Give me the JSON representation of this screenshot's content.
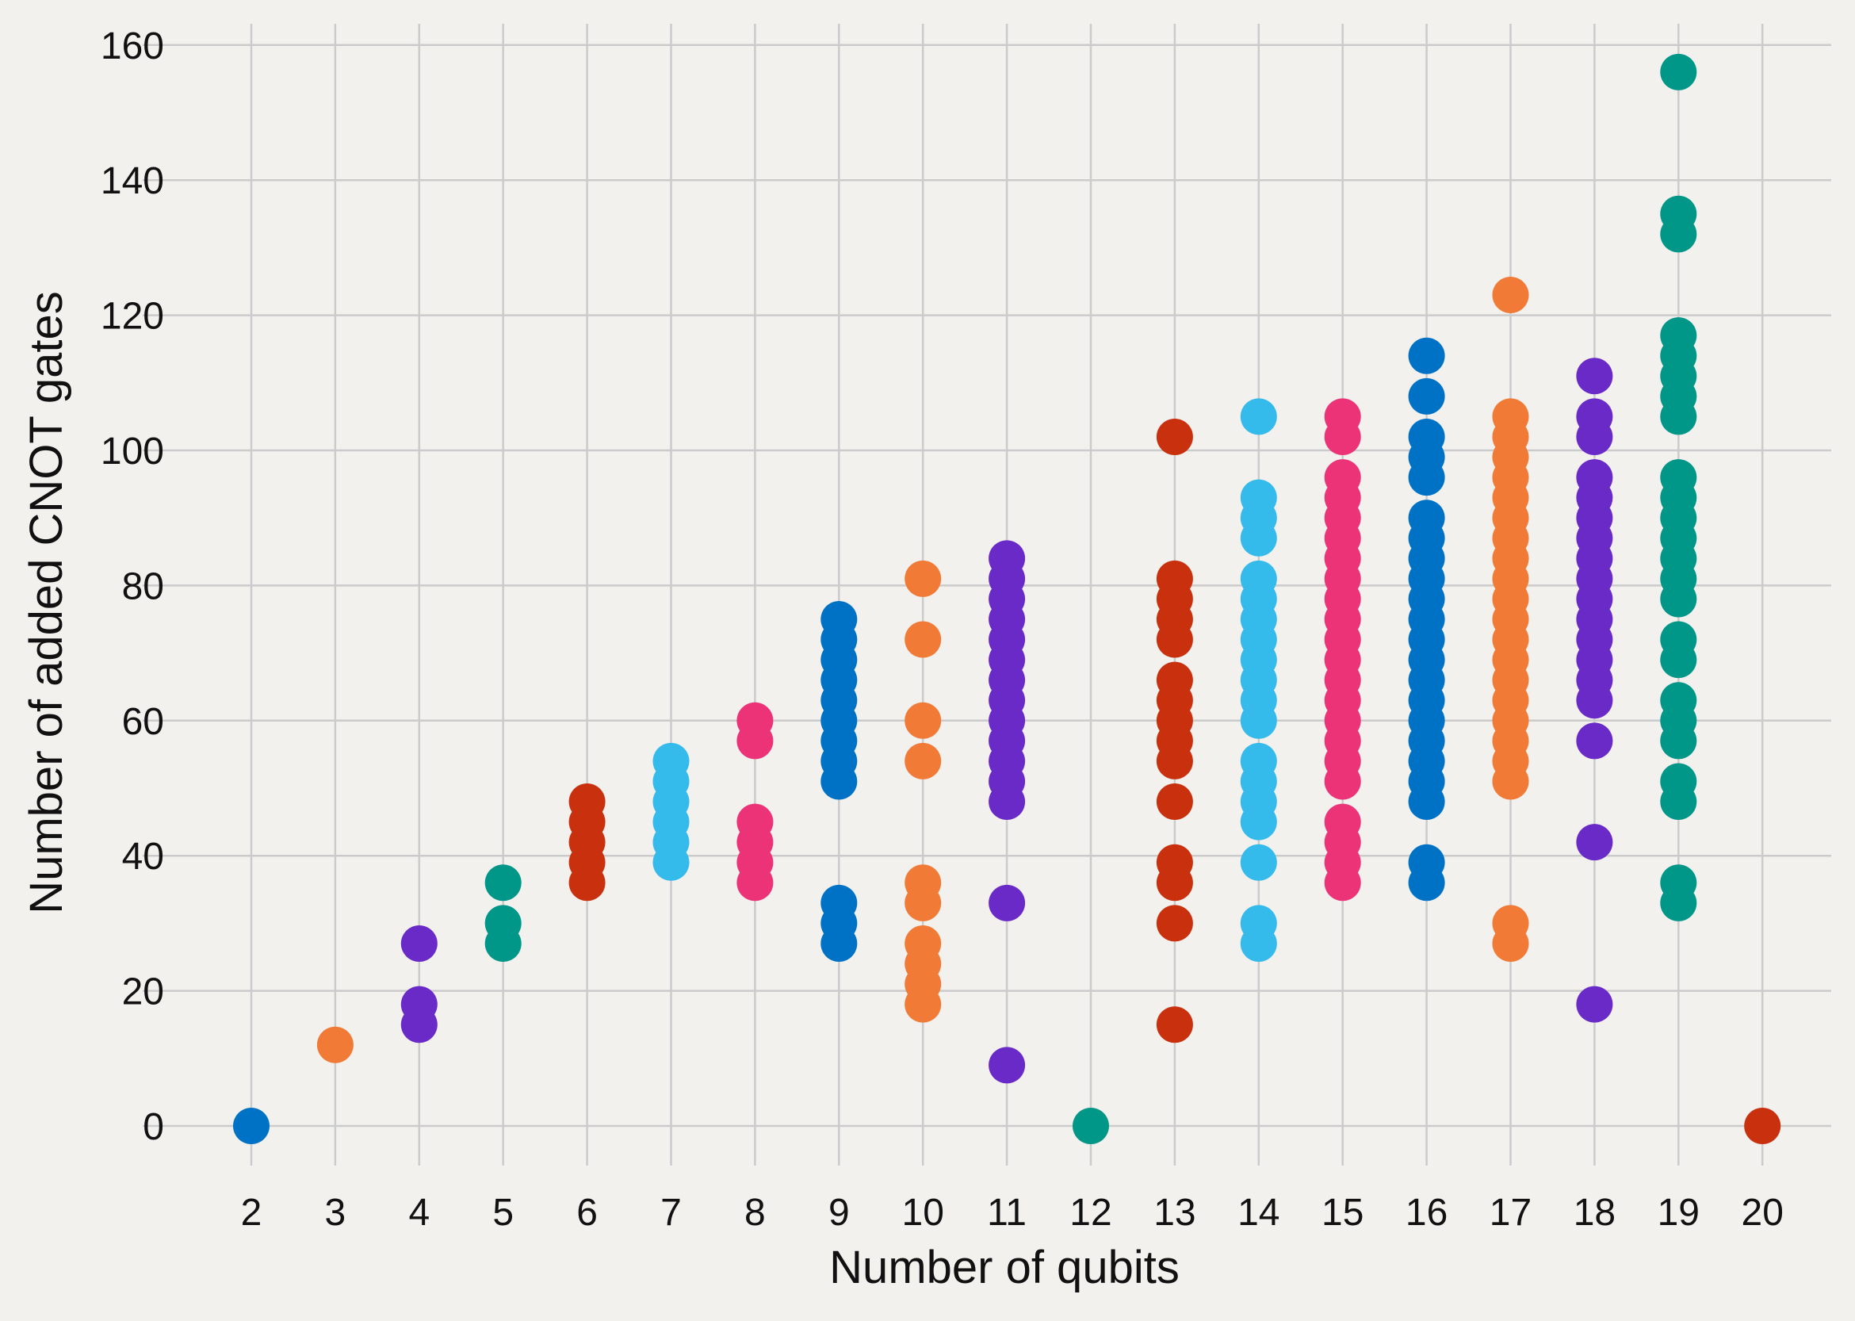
{
  "chart_data": {
    "type": "scatter",
    "title": "",
    "xlabel": "Number of qubits",
    "ylabel": "Number of added CNOT gates",
    "xlim": [
      1.2,
      20.8
    ],
    "ylim": [
      -7,
      165
    ],
    "x_ticks": [
      2,
      3,
      4,
      5,
      6,
      7,
      8,
      9,
      10,
      11,
      12,
      13,
      14,
      15,
      16,
      17,
      18,
      19,
      20
    ],
    "y_ticks": [
      0,
      20,
      40,
      60,
      80,
      100,
      120,
      140,
      160
    ],
    "grid": true,
    "legend": "none",
    "series": [
      {
        "x": 2,
        "color": "#0072c6",
        "values": [
          0
        ]
      },
      {
        "x": 3,
        "color": "#f07a36",
        "values": [
          12
        ]
      },
      {
        "x": 4,
        "color": "#6a2ac8",
        "values": [
          15,
          18,
          27
        ]
      },
      {
        "x": 5,
        "color": "#009688",
        "values": [
          27,
          30,
          36
        ]
      },
      {
        "x": 6,
        "color": "#c8300e",
        "values": [
          36,
          39,
          42,
          45,
          48
        ]
      },
      {
        "x": 7,
        "color": "#35baec",
        "values": [
          39,
          42,
          45,
          48,
          51,
          54
        ]
      },
      {
        "x": 8,
        "color": "#ec3378",
        "values": [
          36,
          39,
          42,
          45,
          57,
          60
        ]
      },
      {
        "x": 9,
        "color": "#0072c6",
        "values": [
          27,
          30,
          33,
          51,
          54,
          57,
          60,
          63,
          66,
          69,
          72,
          75
        ]
      },
      {
        "x": 10,
        "color": "#f07a36",
        "values": [
          18,
          21,
          24,
          27,
          33,
          36,
          54,
          60,
          72,
          81
        ]
      },
      {
        "x": 11,
        "color": "#6a2ac8",
        "values": [
          9,
          33,
          48,
          51,
          54,
          57,
          60,
          63,
          66,
          69,
          72,
          75,
          78,
          81,
          84
        ]
      },
      {
        "x": 12,
        "color": "#009688",
        "values": [
          0
        ]
      },
      {
        "x": 13,
        "color": "#c8300e",
        "values": [
          15,
          30,
          36,
          39,
          48,
          54,
          57,
          60,
          63,
          66,
          72,
          75,
          78,
          81,
          102
        ]
      },
      {
        "x": 14,
        "color": "#35baec",
        "values": [
          27,
          30,
          39,
          45,
          48,
          51,
          54,
          60,
          63,
          66,
          69,
          72,
          75,
          78,
          81,
          87,
          90,
          93,
          105
        ]
      },
      {
        "x": 15,
        "color": "#ec3378",
        "values": [
          36,
          39,
          42,
          45,
          51,
          54,
          57,
          60,
          63,
          66,
          69,
          72,
          75,
          78,
          81,
          84,
          87,
          90,
          93,
          96,
          102,
          105
        ]
      },
      {
        "x": 16,
        "color": "#0072c6",
        "values": [
          36,
          39,
          48,
          51,
          54,
          57,
          60,
          63,
          66,
          69,
          72,
          75,
          78,
          81,
          84,
          87,
          90,
          96,
          99,
          102,
          108,
          114
        ]
      },
      {
        "x": 17,
        "color": "#f07a36",
        "values": [
          27,
          30,
          51,
          54,
          57,
          60,
          63,
          66,
          69,
          72,
          75,
          78,
          81,
          84,
          87,
          90,
          93,
          96,
          99,
          102,
          105,
          123
        ]
      },
      {
        "x": 18,
        "color": "#6a2ac8",
        "values": [
          18,
          42,
          57,
          63,
          66,
          69,
          72,
          75,
          78,
          81,
          84,
          87,
          90,
          93,
          96,
          102,
          105,
          111
        ]
      },
      {
        "x": 19,
        "color": "#009688",
        "values": [
          33,
          36,
          48,
          51,
          57,
          60,
          63,
          69,
          72,
          78,
          81,
          84,
          87,
          90,
          93,
          96,
          105,
          108,
          111,
          114,
          117,
          132,
          135,
          156
        ]
      },
      {
        "x": 20,
        "color": "#c8300e",
        "values": [
          0
        ]
      }
    ]
  }
}
